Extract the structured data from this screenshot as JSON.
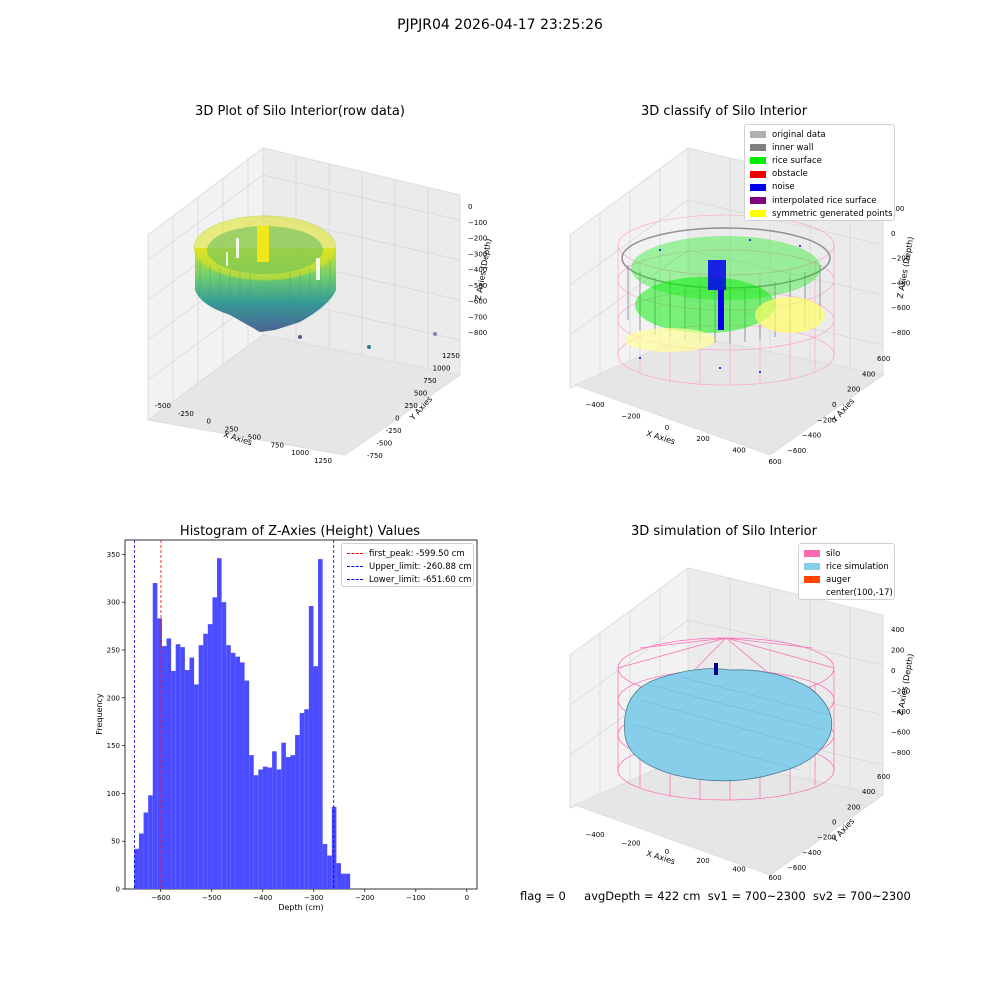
{
  "suptitle": "PJPJR04 2026-04-17 23:25:26",
  "footer": {
    "flag": "flag = 0",
    "avg_depth": "avgDepth = 422 cm",
    "sv1": "sv1 = 700~2300",
    "sv2": "sv2 = 700~2300"
  },
  "panels": {
    "raw": {
      "title": "3D Plot of Silo Interior(row data)",
      "xlabel": "X Axies",
      "ylabel": "Y Axies",
      "zlabel": "Z Axies (Depth)",
      "xticks": [
        "-500",
        "-250",
        "0",
        "250",
        "500",
        "750",
        "1000",
        "1250"
      ],
      "yticks": [
        "-750",
        "-500",
        "-250",
        "0",
        "250",
        "500",
        "750",
        "1000",
        "1250"
      ],
      "zticks": [
        "0",
        "−100",
        "−200",
        "−300",
        "−400",
        "−500",
        "−600",
        "−700",
        "−800"
      ]
    },
    "classify": {
      "title": "3D classify of Silo Interior",
      "xlabel": "X Axies",
      "ylabel": "Y Axies",
      "zlabel": "Z Axies (Depth)",
      "xticks": [
        "−400",
        "−200",
        "0",
        "200",
        "400",
        "600"
      ],
      "yticks": [
        "−600",
        "−400",
        "−200",
        "0",
        "200",
        "400",
        "600"
      ],
      "zticks": [
        "200",
        "0",
        "−200",
        "−400",
        "−600",
        "−800"
      ],
      "legend": [
        {
          "label": "original data",
          "color": "#b0b0b0"
        },
        {
          "label": "inner wall",
          "color": "#808080"
        },
        {
          "label": "rice surface",
          "color": "#00ee00"
        },
        {
          "label": "obstacle",
          "color": "#ee0000"
        },
        {
          "label": "noise",
          "color": "#0000ee"
        },
        {
          "label": "interpolated rice surface",
          "color": "#800080"
        },
        {
          "label": "symmetric generated points",
          "color": "#ffff00"
        }
      ]
    },
    "simulation": {
      "title": "3D simulation of Silo Interior",
      "xlabel": "X Axies",
      "ylabel": "Y Axies",
      "zlabel": "Z Axies (Depth)",
      "xticks": [
        "−400",
        "−200",
        "0",
        "200",
        "400",
        "600"
      ],
      "yticks": [
        "−600",
        "−400",
        "−200",
        "0",
        "200",
        "400",
        "600"
      ],
      "zticks": [
        "400",
        "200",
        "0",
        "−200",
        "−400",
        "−600",
        "−800"
      ],
      "legend": [
        {
          "label": "silo",
          "color": "#ff69b4"
        },
        {
          "label": "rice simulation",
          "color": "#87ceeb"
        },
        {
          "label": "auger",
          "color": "#ff4500"
        },
        {
          "label": "center(100,-17)",
          "color": ""
        }
      ]
    }
  },
  "chart_data": [
    {
      "type": "bar",
      "title": "Histogram of Z-Axies (Height) Values",
      "xlabel": "Depth (cm)",
      "ylabel": "Frequency",
      "xlim": [
        -670,
        20
      ],
      "ylim": [
        0,
        365
      ],
      "xticks": [
        -600,
        -500,
        -400,
        -300,
        -200,
        -100,
        0
      ],
      "yticks": [
        0,
        50,
        100,
        150,
        200,
        250,
        300,
        350
      ],
      "bin_start": -651.6,
      "bin_width": 9.0,
      "bar_color": "#4b4bff",
      "values": [
        42,
        58,
        80,
        98,
        320,
        283,
        254,
        262,
        228,
        256,
        253,
        229,
        242,
        214,
        255,
        267,
        277,
        305,
        346,
        300,
        255,
        247,
        243,
        237,
        218,
        140,
        119,
        125,
        128,
        127,
        144,
        125,
        153,
        138,
        140,
        161,
        184,
        188,
        296,
        233,
        345,
        47,
        35,
        86,
        27,
        16,
        16
      ],
      "vlines": [
        {
          "name": "first_peak: -599.50 cm",
          "x": -599.5,
          "color": "#ff0000"
        },
        {
          "name": "Upper_limit: -260.88 cm",
          "x": -260.88,
          "color": "#0000cc"
        },
        {
          "name": "Lower_limit: -651.60 cm",
          "x": -651.6,
          "color": "#0000cc"
        }
      ],
      "legend_position": "upper right"
    }
  ]
}
